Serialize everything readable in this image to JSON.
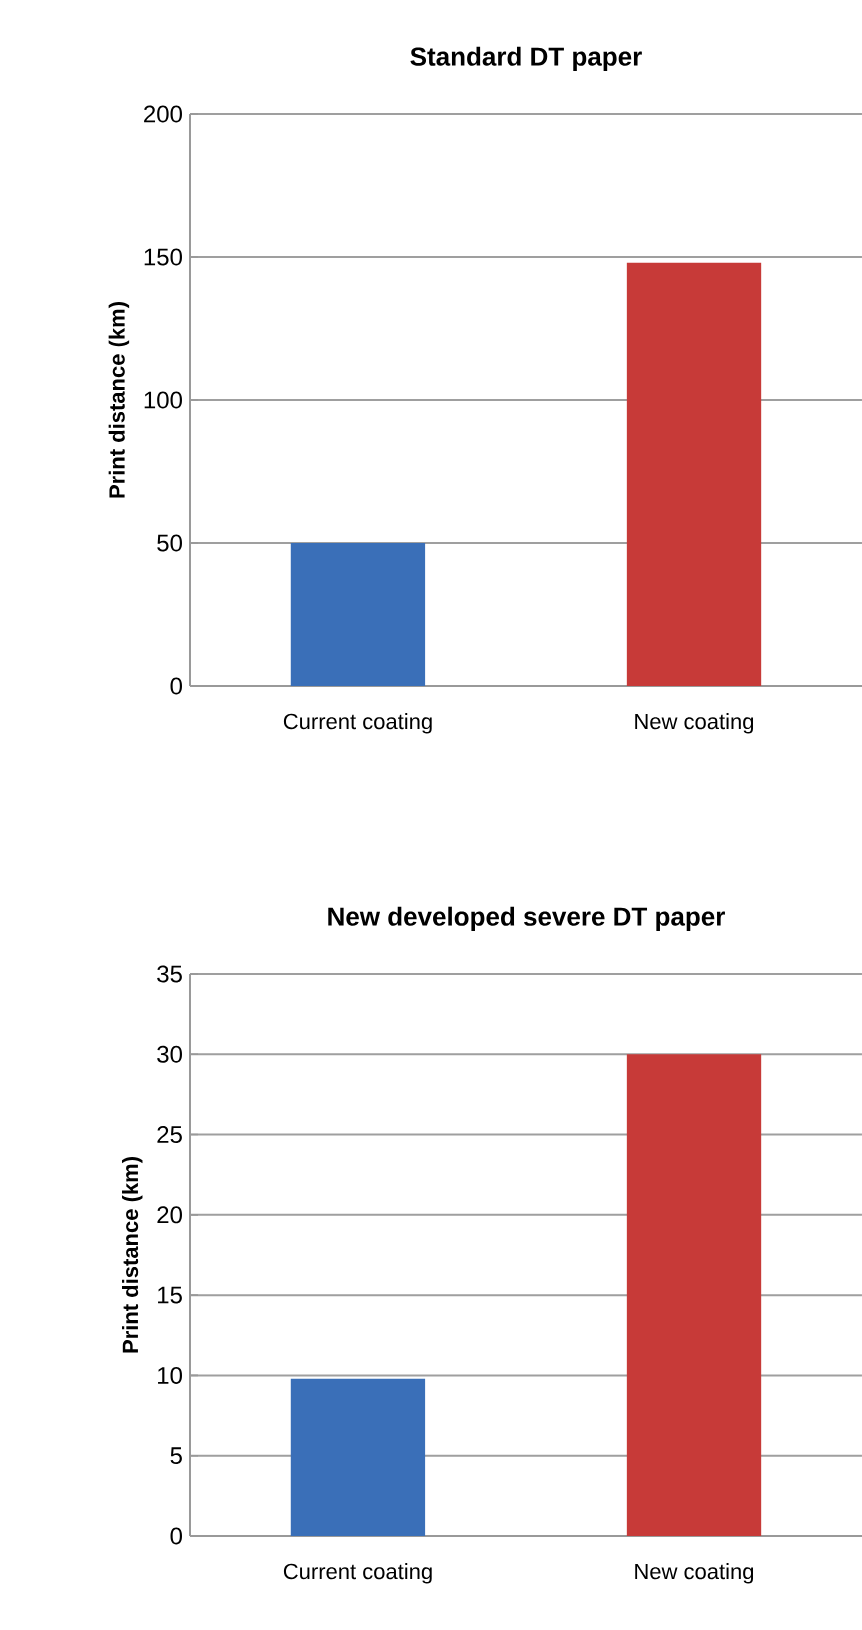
{
  "chart_data": [
    {
      "type": "bar",
      "title": "Standard DT paper",
      "ylabel": "Print distance (km)",
      "categories": [
        "Current coating",
        "New coating"
      ],
      "values": [
        50,
        148
      ],
      "colors": [
        "#3a6fb8",
        "#c73a38"
      ],
      "ylim": [
        0,
        200
      ],
      "yticks": [
        0,
        50,
        100,
        150,
        200
      ],
      "grid": "y"
    },
    {
      "type": "bar",
      "title": "New developed severe DT paper",
      "ylabel": "Print distance (km)",
      "categories": [
        "Current coating",
        "New coating"
      ],
      "values": [
        9.8,
        30
      ],
      "colors": [
        "#3a6fb8",
        "#c73a38"
      ],
      "ylim": [
        0,
        35
      ],
      "yticks": [
        0,
        5,
        10,
        15,
        20,
        25,
        30,
        35
      ],
      "grid": "y"
    }
  ]
}
